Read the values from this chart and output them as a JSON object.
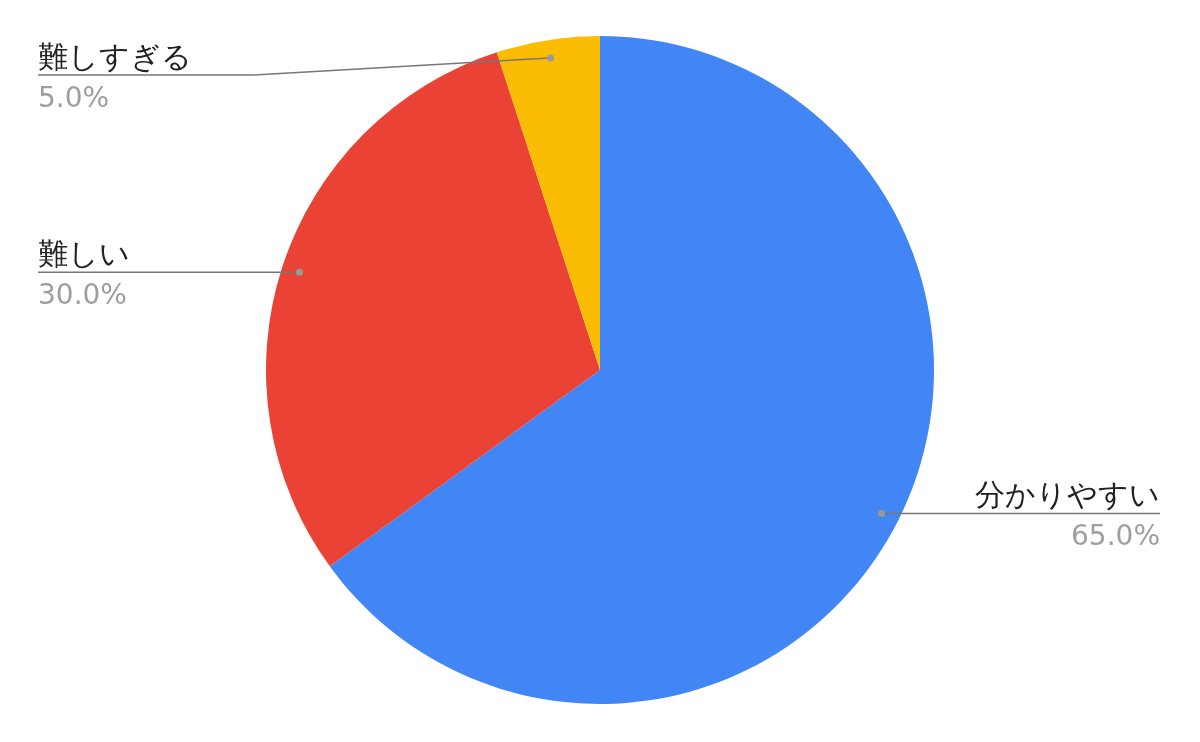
{
  "chart_data": {
    "type": "pie",
    "categories": [
      "分かりやすい",
      "難しい",
      "難しすぎる"
    ],
    "values": [
      65,
      30,
      5
    ],
    "colors": [
      "#4285f4",
      "#ea4335",
      "#fbbc04"
    ],
    "value_labels": [
      "65.0%",
      "30.0%",
      "5.0%"
    ],
    "legend": false
  }
}
